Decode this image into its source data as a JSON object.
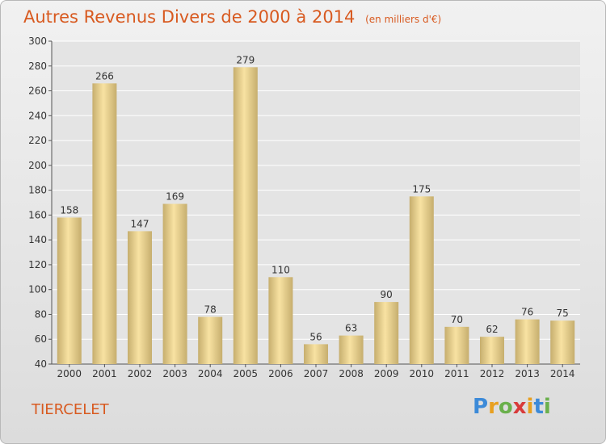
{
  "chart_data": {
    "type": "bar",
    "title": "Autres Revenus Divers de 2000 à 2014",
    "unit": "(en milliers d'€)",
    "categories": [
      "2000",
      "2001",
      "2002",
      "2003",
      "2004",
      "2005",
      "2006",
      "2007",
      "2008",
      "2009",
      "2010",
      "2011",
      "2012",
      "2013",
      "2014"
    ],
    "values": [
      158,
      266,
      147,
      169,
      78,
      279,
      110,
      56,
      63,
      90,
      175,
      70,
      62,
      76,
      75
    ],
    "ylim": [
      40,
      300
    ],
    "yticks": [
      40,
      60,
      80,
      100,
      120,
      140,
      160,
      180,
      200,
      220,
      240,
      260,
      280,
      300
    ],
    "grid": true,
    "xlabel": "",
    "ylabel": ""
  },
  "commune": "TIERCELET",
  "logo": {
    "text": "Proxiti"
  },
  "colors": {
    "title": "#d85a20",
    "bar_light": "#f8e2a2",
    "bar_dark": "#c6ae6e",
    "grid": "#ffffff"
  }
}
